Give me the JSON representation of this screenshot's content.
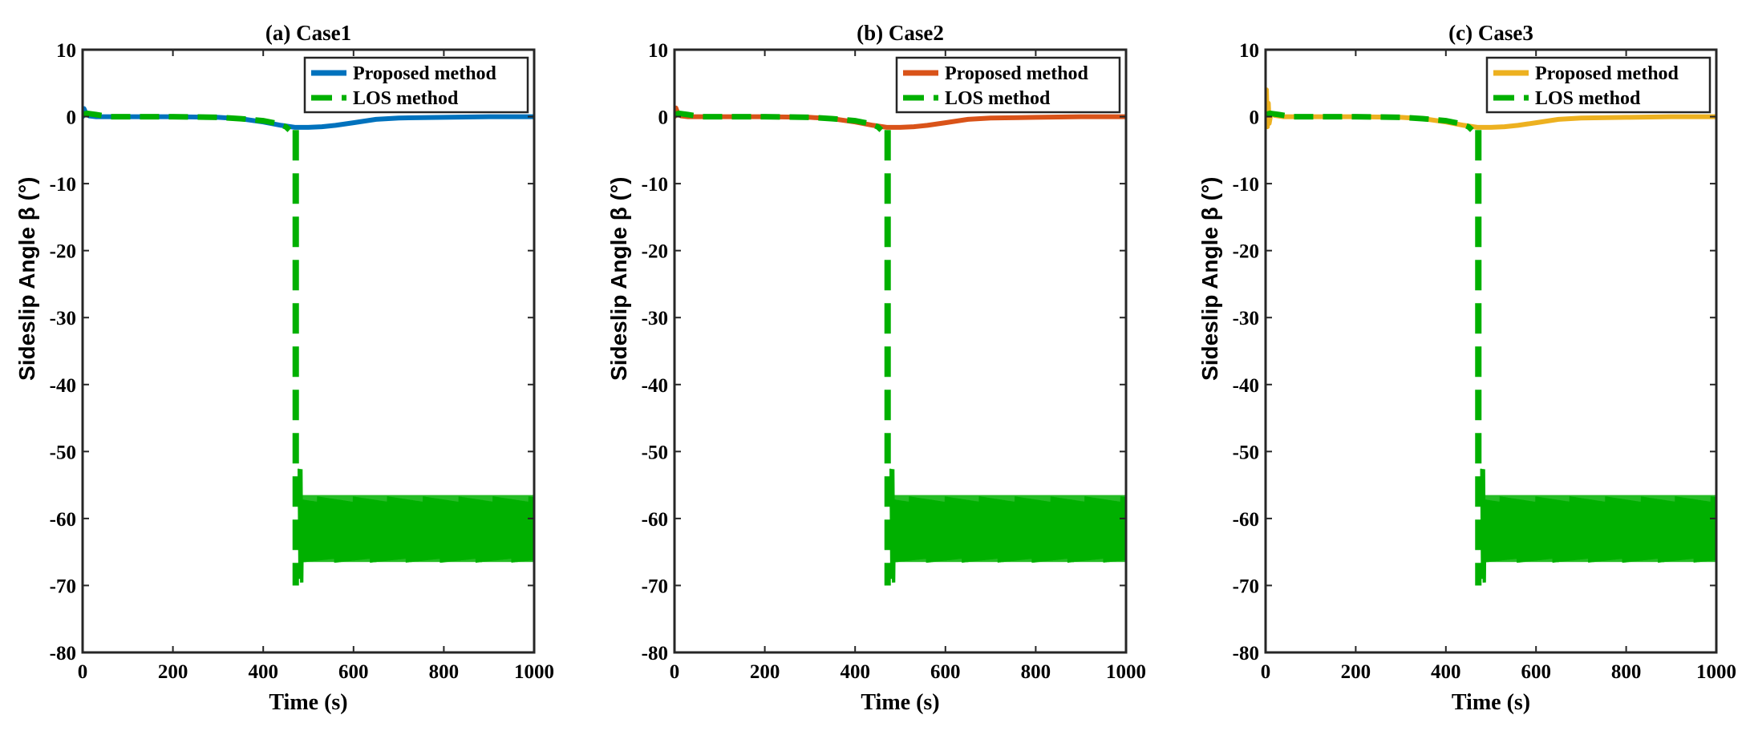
{
  "figure": {
    "description_free": true
  },
  "chart_data": [
    {
      "type": "line",
      "title": "(a) Case1",
      "xlabel": "Time (s)",
      "ylabel": "Sideslip Angle β (°)",
      "xlim": [
        0,
        1000
      ],
      "ylim": [
        -80,
        10
      ],
      "xticks": [
        0,
        200,
        400,
        600,
        800,
        1000
      ],
      "yticks": [
        10,
        0,
        -10,
        -20,
        -30,
        -40,
        -50,
        -60,
        -70,
        -80
      ],
      "legend_position": "top-right",
      "series": [
        {
          "name": "Proposed method",
          "color": "#0072BD",
          "style": "solid",
          "x": [
            0,
            3,
            8,
            15,
            30,
            60,
            100,
            200,
            300,
            350,
            400,
            440,
            470,
            500,
            530,
            560,
            600,
            650,
            700,
            800,
            900,
            1000
          ],
          "y": [
            0,
            1.2,
            0.4,
            0.1,
            0,
            0,
            0,
            0,
            -0.1,
            -0.3,
            -0.8,
            -1.3,
            -1.6,
            -1.6,
            -1.5,
            -1.3,
            -0.9,
            -0.4,
            -0.2,
            -0.1,
            0,
            0
          ]
        },
        {
          "name": "LOS method",
          "color": "#00B000",
          "style": "dashed",
          "x": [
            0,
            10,
            30,
            60,
            100,
            200,
            300,
            350,
            400,
            430,
            450,
            458
          ],
          "y": [
            0.3,
            0.5,
            0.3,
            0,
            0,
            0,
            -0.1,
            -0.3,
            -0.6,
            -1.0,
            -1.5,
            -2.0
          ],
          "drop": {
            "x": 472,
            "from": -2.0,
            "to": -70
          },
          "oscillation": {
            "x_start": 478,
            "x_end": 1000,
            "upper": -57.5,
            "lower": -66,
            "initial_upper": -53,
            "initial_lower": -69
          }
        }
      ]
    },
    {
      "type": "line",
      "title": "(b) Case2",
      "xlabel": "Time (s)",
      "ylabel": "Sideslip Angle β (°)",
      "xlim": [
        0,
        1000
      ],
      "ylim": [
        -80,
        10
      ],
      "xticks": [
        0,
        200,
        400,
        600,
        800,
        1000
      ],
      "yticks": [
        10,
        0,
        -10,
        -20,
        -30,
        -40,
        -50,
        -60,
        -70,
        -80
      ],
      "legend_position": "top-right",
      "series": [
        {
          "name": "Proposed method",
          "color": "#D95319",
          "style": "solid",
          "x": [
            0,
            3,
            8,
            15,
            30,
            60,
            100,
            200,
            300,
            350,
            400,
            440,
            470,
            500,
            530,
            560,
            600,
            650,
            700,
            800,
            900,
            1000
          ],
          "y": [
            0,
            1.3,
            0.4,
            0.1,
            0,
            0,
            0,
            0,
            -0.1,
            -0.3,
            -0.8,
            -1.3,
            -1.6,
            -1.6,
            -1.5,
            -1.3,
            -0.9,
            -0.4,
            -0.2,
            -0.1,
            0,
            0
          ]
        },
        {
          "name": "LOS method",
          "color": "#00B000",
          "style": "dashed",
          "x": [
            0,
            10,
            30,
            60,
            100,
            200,
            300,
            350,
            400,
            430,
            450,
            458
          ],
          "y": [
            0.3,
            0.5,
            0.3,
            0,
            0,
            0,
            -0.1,
            -0.3,
            -0.6,
            -1.0,
            -1.5,
            -2.0
          ],
          "drop": {
            "x": 472,
            "from": -2.0,
            "to": -70
          },
          "oscillation": {
            "x_start": 478,
            "x_end": 1000,
            "upper": -57.5,
            "lower": -66,
            "initial_upper": -53,
            "initial_lower": -69
          }
        }
      ]
    },
    {
      "type": "line",
      "title": "(c) Case3",
      "xlabel": "Time (s)",
      "ylabel": "Sideslip Angle β (°)",
      "xlim": [
        0,
        1000
      ],
      "ylim": [
        -80,
        10
      ],
      "xticks": [
        0,
        200,
        400,
        600,
        800,
        1000
      ],
      "yticks": [
        10,
        0,
        -10,
        -20,
        -30,
        -40,
        -50,
        -60,
        -70,
        -80
      ],
      "legend_position": "top-right",
      "series": [
        {
          "name": "Proposed method",
          "color": "#EDB120",
          "style": "solid",
          "x": [
            0,
            2,
            4,
            6,
            8,
            12,
            20,
            40,
            60,
            100,
            200,
            300,
            350,
            400,
            440,
            470,
            500,
            530,
            560,
            600,
            650,
            700,
            800,
            900,
            1000
          ],
          "y": [
            0,
            4,
            -1.5,
            2,
            -1,
            0.5,
            0.2,
            0,
            0,
            0,
            0,
            -0.1,
            -0.3,
            -0.8,
            -1.3,
            -1.6,
            -1.6,
            -1.5,
            -1.3,
            -0.9,
            -0.4,
            -0.2,
            -0.1,
            0,
            0
          ]
        },
        {
          "name": "LOS method",
          "color": "#00B000",
          "style": "dashed",
          "x": [
            0,
            10,
            30,
            60,
            100,
            200,
            300,
            350,
            400,
            430,
            450,
            458
          ],
          "y": [
            0.3,
            0.5,
            0.3,
            0,
            0,
            0,
            -0.1,
            -0.3,
            -0.6,
            -1.0,
            -1.5,
            -2.0
          ],
          "drop": {
            "x": 472,
            "from": -2.0,
            "to": -70
          },
          "oscillation": {
            "x_start": 478,
            "x_end": 1000,
            "upper": -57.5,
            "lower": -66,
            "initial_upper": -53,
            "initial_lower": -69
          }
        }
      ]
    }
  ]
}
